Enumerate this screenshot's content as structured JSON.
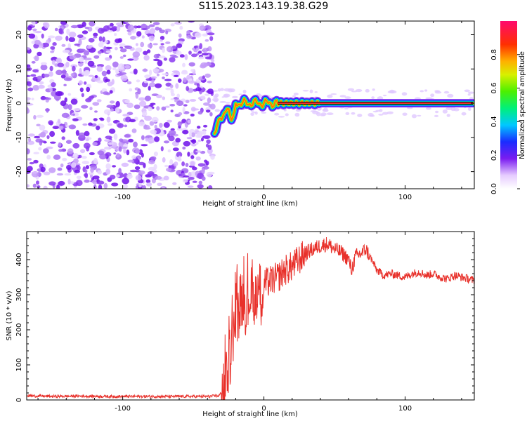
{
  "title": "S115.2023.143.19.38.G29",
  "chart_data": [
    {
      "type": "heatmap",
      "xlabel": "Height of straight line (km)",
      "ylabel": "Frequency (Hz)",
      "xlim": [
        -168,
        149
      ],
      "ylim": [
        -25,
        24
      ],
      "xticks": [
        -100,
        0,
        100
      ],
      "yticks": [
        -20,
        -10,
        0,
        10,
        20
      ],
      "colorbar": {
        "label": "Normalized spectral amplitude",
        "range": [
          0,
          1
        ],
        "ticks": [
          "0.0",
          "0.2",
          "0.4",
          "0.6",
          "0.8"
        ]
      },
      "features": [
        {
          "name": "noise",
          "x_range": [
            -168,
            -36
          ],
          "y_range": [
            -25,
            24
          ],
          "amplitude": 0.15
        },
        {
          "name": "signal",
          "x_range": [
            -36,
            149
          ],
          "frequency_center": 0,
          "amplitude": 0.9
        }
      ],
      "grid": false
    },
    {
      "type": "line",
      "xlabel": "Height of straight line (km)",
      "ylabel": "SNR (10 * v/v)",
      "xlim": [
        -168,
        149
      ],
      "ylim": [
        0,
        480
      ],
      "xticks": [
        -100,
        0,
        100
      ],
      "yticks": [
        0,
        100,
        200,
        300,
        400
      ],
      "series": [
        {
          "color": "#e8302a",
          "x": [
            -168,
            -150,
            -130,
            -110,
            -90,
            -70,
            -50,
            -40,
            -32,
            -28,
            -25,
            -22,
            -20,
            -18,
            -15,
            -12,
            -10,
            -8,
            -5,
            -2,
            0,
            5,
            10,
            15,
            20,
            25,
            30,
            35,
            40,
            45,
            50,
            55,
            60,
            62,
            65,
            70,
            72,
            75,
            80,
            85,
            90,
            95,
            100,
            105,
            110,
            115,
            120,
            125,
            130,
            135,
            140,
            145,
            149
          ],
          "y": [
            12,
            10,
            11,
            10,
            10,
            10,
            10,
            10,
            12,
            30,
            100,
            190,
            230,
            260,
            300,
            260,
            310,
            280,
            320,
            300,
            330,
            340,
            350,
            370,
            380,
            400,
            420,
            430,
            440,
            445,
            430,
            420,
            400,
            370,
            410,
            420,
            430,
            410,
            370,
            355,
            360,
            355,
            350,
            360,
            365,
            355,
            360,
            350,
            345,
            355,
            350,
            345,
            340
          ]
        }
      ],
      "grid": false
    }
  ]
}
